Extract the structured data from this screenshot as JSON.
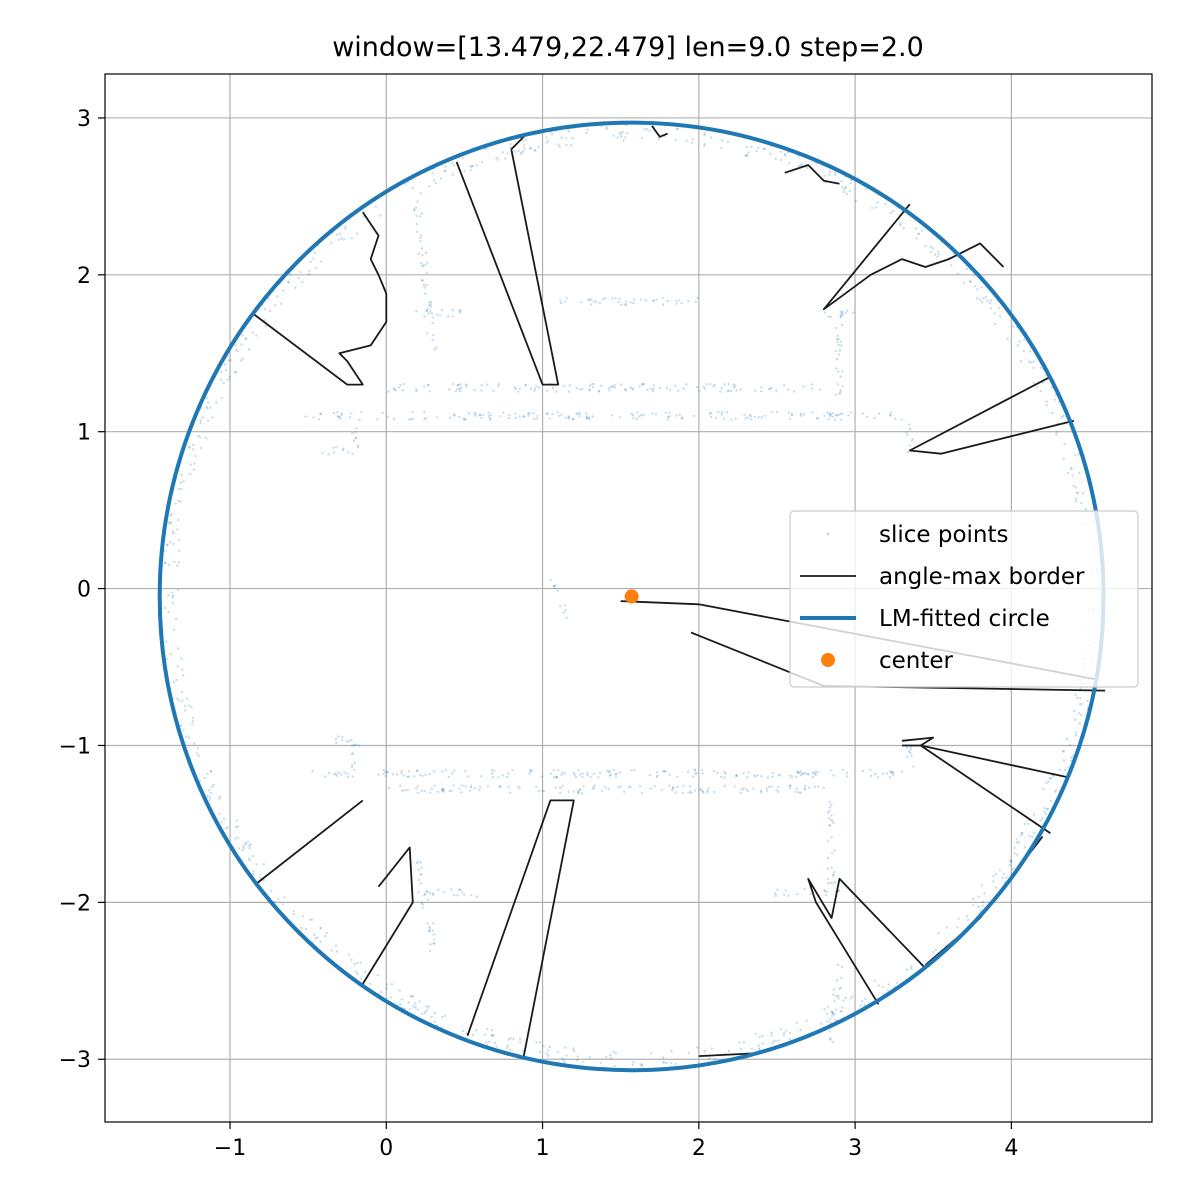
{
  "chart_data": {
    "type": "scatter",
    "title": "window=[13.479,22.479] len=9.0  step=2.0",
    "xlabel": "",
    "ylabel": "",
    "xlim": [
      -1.8,
      4.9
    ],
    "ylim": [
      -3.4,
      3.28
    ],
    "x_ticks": [
      -1,
      0,
      1,
      2,
      3,
      4
    ],
    "x_tick_labels": [
      "−1",
      "0",
      "1",
      "2",
      "3",
      "4"
    ],
    "y_ticks": [
      3,
      2,
      1,
      0,
      -1,
      -2,
      -3
    ],
    "y_tick_labels": [
      "3",
      "2",
      "1",
      "0",
      "−1",
      "−2",
      "−3"
    ],
    "grid": true,
    "legend_position": "center-right",
    "colors": {
      "points": "#1f77b4",
      "circle": "#1f77b4",
      "border": "#000000",
      "center": "#ff7f0e"
    },
    "series": [
      {
        "name": "slice points",
        "kind": "scatter-cloud",
        "segments": [
          [
            [
              -0.5,
              1.1
            ],
            [
              1.5,
              1.1
            ],
            [
              3.3,
              1.1
            ]
          ],
          [
            [
              -0.5,
              -1.18
            ],
            [
              1.5,
              -1.18
            ],
            [
              3.3,
              -1.18
            ]
          ],
          [
            [
              0.0,
              1.28
            ],
            [
              2.8,
              1.28
            ]
          ],
          [
            [
              0.0,
              -1.28
            ],
            [
              2.8,
              -1.28
            ]
          ],
          [
            [
              1.1,
              1.83
            ],
            [
              2.0,
              1.83
            ]
          ],
          [
            [
              0.2,
              1.75
            ],
            [
              0.5,
              1.75
            ]
          ],
          [
            [
              -0.4,
              0.88
            ],
            [
              -0.2,
              0.88
            ],
            [
              -0.2,
              1.05
            ]
          ],
          [
            [
              -0.35,
              -0.96
            ],
            [
              -0.2,
              -0.96
            ],
            [
              -0.2,
              -1.15
            ]
          ],
          [
            [
              0.2,
              -1.94
            ],
            [
              0.6,
              -1.94
            ]
          ],
          [
            [
              2.5,
              -1.94
            ],
            [
              2.9,
              -1.94
            ]
          ],
          [
            [
              2.75,
              1.75
            ],
            [
              3.0,
              1.75
            ]
          ],
          [
            [
              2.9,
              1.75
            ],
            [
              2.9,
              1.2
            ]
          ],
          [
            [
              2.85,
              -1.3
            ],
            [
              2.85,
              -1.9
            ]
          ],
          [
            [
              3.35,
              0.88
            ],
            [
              3.35,
              1.05
            ]
          ],
          [
            [
              3.35,
              -1.0
            ],
            [
              3.35,
              -1.15
            ]
          ],
          [
            [
              1.05,
              0.05
            ],
            [
              1.15,
              -0.18
            ]
          ],
          [
            [
              0.2,
              2.45
            ],
            [
              0.3,
              1.5
            ]
          ],
          [
            [
              0.3,
              -2.3
            ],
            [
              0.2,
              -1.7
            ]
          ],
          [
            [
              2.9,
              -2.4
            ],
            [
              2.85,
              -2.9
            ]
          ]
        ]
      },
      {
        "name": "angle-max border",
        "kind": "line",
        "paths": [
          [
            [
              -0.85,
              1.75
            ],
            [
              -0.25,
              1.3
            ],
            [
              -0.15,
              1.3
            ],
            [
              -0.25,
              1.45
            ],
            [
              -0.3,
              1.5
            ],
            [
              -0.1,
              1.55
            ],
            [
              0.0,
              1.7
            ],
            [
              0.0,
              1.88
            ],
            [
              -0.05,
              2.0
            ],
            [
              -0.1,
              2.1
            ],
            [
              -0.05,
              2.25
            ],
            [
              -0.15,
              2.4
            ]
          ],
          [
            [
              0.45,
              2.72
            ],
            [
              1.0,
              1.3
            ],
            [
              1.1,
              1.3
            ],
            [
              0.8,
              2.8
            ]
          ],
          [
            [
              0.8,
              2.8
            ],
            [
              0.9,
              2.9
            ]
          ],
          [
            [
              1.7,
              2.95
            ],
            [
              1.75,
              2.88
            ],
            [
              1.8,
              2.9
            ]
          ],
          [
            [
              2.55,
              2.65
            ],
            [
              2.7,
              2.7
            ],
            [
              2.8,
              2.6
            ],
            [
              2.9,
              2.58
            ]
          ],
          [
            [
              3.35,
              2.45
            ],
            [
              2.8,
              1.78
            ],
            [
              3.1,
              2.0
            ],
            [
              3.3,
              2.1
            ],
            [
              3.45,
              2.05
            ],
            [
              3.6,
              2.1
            ],
            [
              3.8,
              2.2
            ],
            [
              3.95,
              2.05
            ]
          ],
          [
            [
              4.25,
              1.35
            ],
            [
              3.35,
              0.88
            ],
            [
              3.55,
              0.86
            ],
            [
              4.4,
              1.07
            ]
          ],
          [
            [
              1.5,
              -0.08
            ],
            [
              2.0,
              -0.1
            ],
            [
              4.55,
              -0.58
            ]
          ],
          [
            [
              1.95,
              -0.28
            ],
            [
              2.8,
              -0.62
            ],
            [
              4.6,
              -0.65
            ]
          ],
          [
            [
              3.3,
              -0.97
            ],
            [
              3.5,
              -0.95
            ],
            [
              3.42,
              -1.0
            ],
            [
              3.3,
              -1.0
            ]
          ],
          [
            [
              3.42,
              -1.0
            ],
            [
              4.35,
              -1.2
            ]
          ],
          [
            [
              3.42,
              -1.0
            ],
            [
              4.25,
              -1.56
            ]
          ],
          [
            [
              4.2,
              -1.58
            ],
            [
              3.8,
              -2.1
            ],
            [
              3.45,
              -2.4
            ]
          ],
          [
            [
              3.45,
              -2.42
            ],
            [
              2.9,
              -1.85
            ],
            [
              2.85,
              -2.1
            ],
            [
              2.7,
              -1.85
            ],
            [
              2.75,
              -2.0
            ],
            [
              3.15,
              -2.65
            ]
          ],
          [
            [
              -0.83,
              -1.88
            ],
            [
              -0.15,
              -1.35
            ]
          ],
          [
            [
              -0.05,
              -1.9
            ],
            [
              0.15,
              -1.65
            ],
            [
              0.17,
              -2.0
            ],
            [
              -0.15,
              -2.52
            ]
          ],
          [
            [
              0.52,
              -2.85
            ],
            [
              1.05,
              -1.35
            ],
            [
              1.2,
              -1.35
            ],
            [
              0.88,
              -2.98
            ]
          ],
          [
            [
              2.0,
              -2.98
            ],
            [
              2.4,
              -2.96
            ]
          ]
        ]
      },
      {
        "name": "LM-fitted circle",
        "kind": "circle",
        "center": [
          1.57,
          -0.05
        ],
        "radius": 3.02
      },
      {
        "name": "center",
        "kind": "point",
        "values": [
          [
            1.57,
            -0.05
          ]
        ]
      }
    ]
  }
}
